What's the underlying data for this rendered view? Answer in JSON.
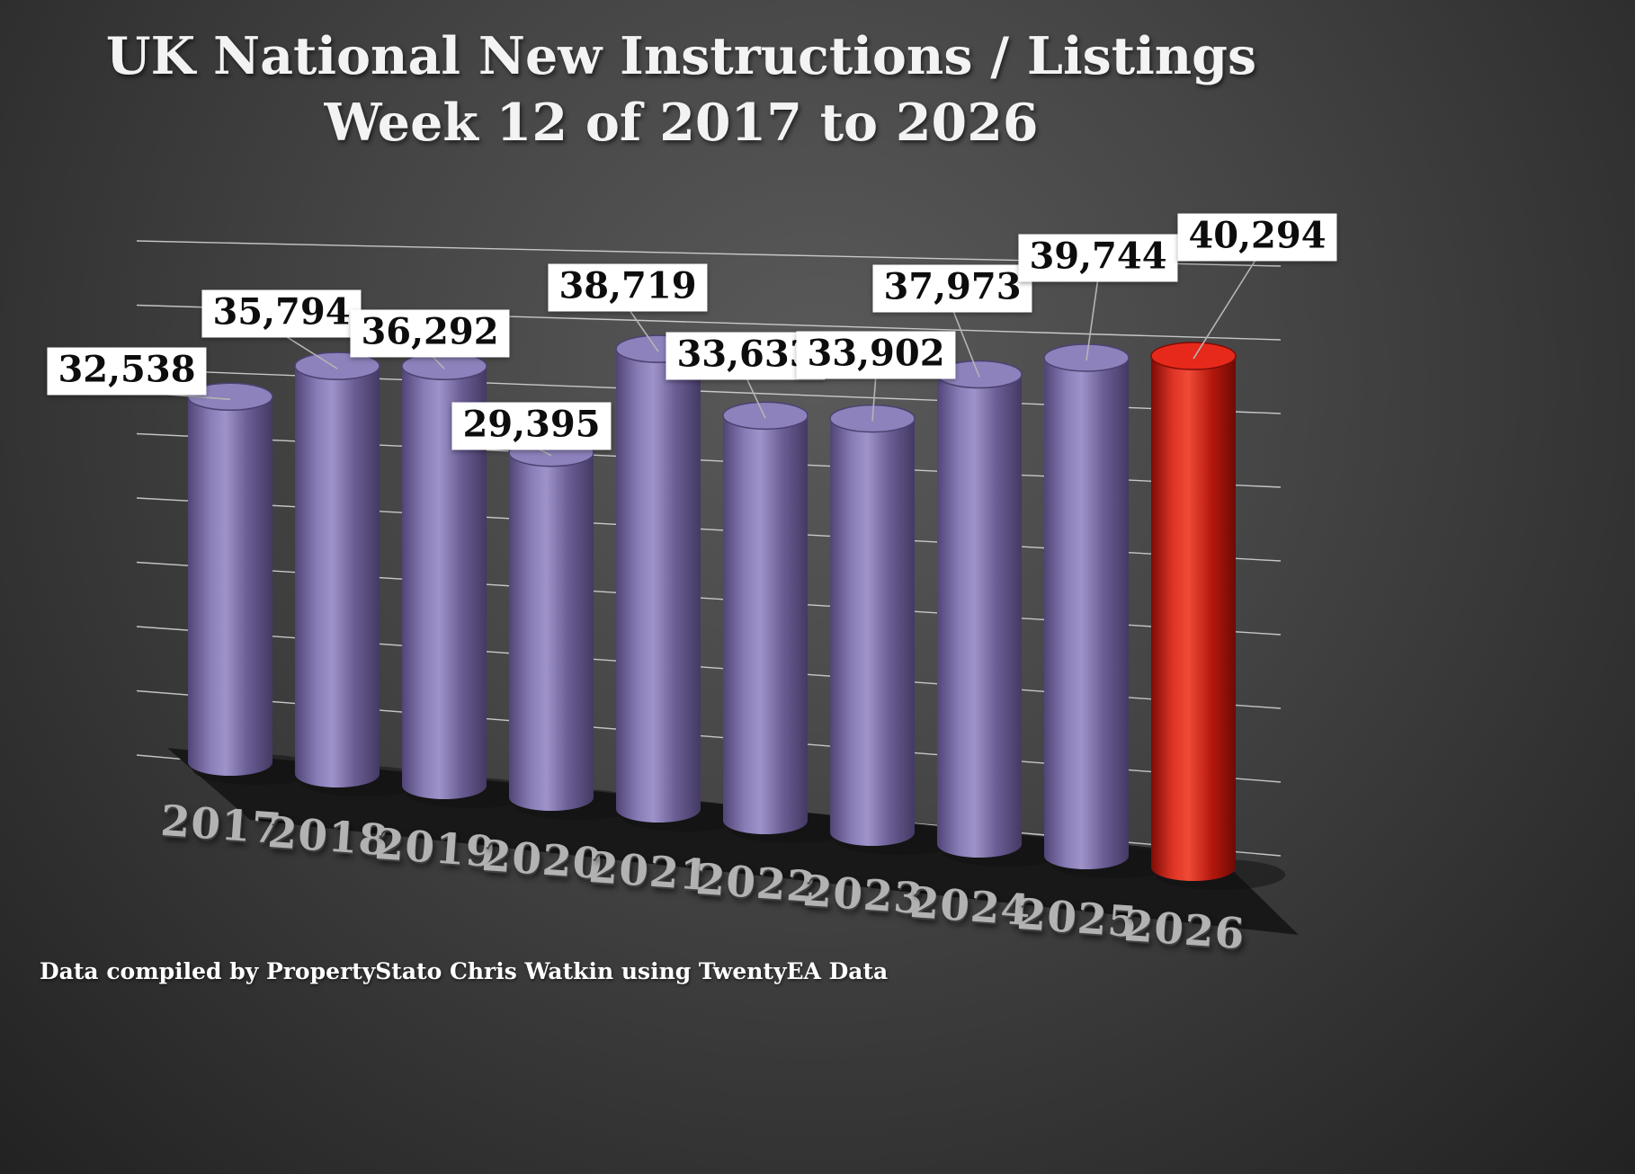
{
  "title": {
    "line1": "UK National New Instructions / Listings",
    "line2": "Week 12 of 2017 to 2026"
  },
  "footer": {
    "credit": "Data compiled by PropertyStato Chris Watkin using TwentyEA Data"
  },
  "chart_data": {
    "type": "bar",
    "subtype": "3d-cylinder",
    "title": "UK National New Instructions / Listings Week 12 of 2017 to 2026",
    "categories": [
      "2017",
      "2018",
      "2019",
      "2020",
      "2021",
      "2022",
      "2023",
      "2024",
      "2025",
      "2026"
    ],
    "values": [
      32538,
      35794,
      36292,
      29395,
      38719,
      33633,
      33902,
      37973,
      39744,
      40294
    ],
    "value_labels": [
      "32,538",
      "35,794",
      "36,292",
      "29,395",
      "38,719",
      "33,633",
      "33,902",
      "37,973",
      "39,744",
      "40,294"
    ],
    "xlabel": "",
    "ylabel": "",
    "ylim": [
      0,
      45000
    ],
    "grid": true,
    "legend": false,
    "colors": {
      "bar_default": "#7a6aa5",
      "bar_highlight": "#e02413",
      "highlight_index": 9,
      "background": "#3f3f3f",
      "gridline": "#e6e6e6",
      "label_bg": "#ffffff",
      "label_text": "#0d0d0d",
      "year_text": "#b2b2b2"
    }
  }
}
